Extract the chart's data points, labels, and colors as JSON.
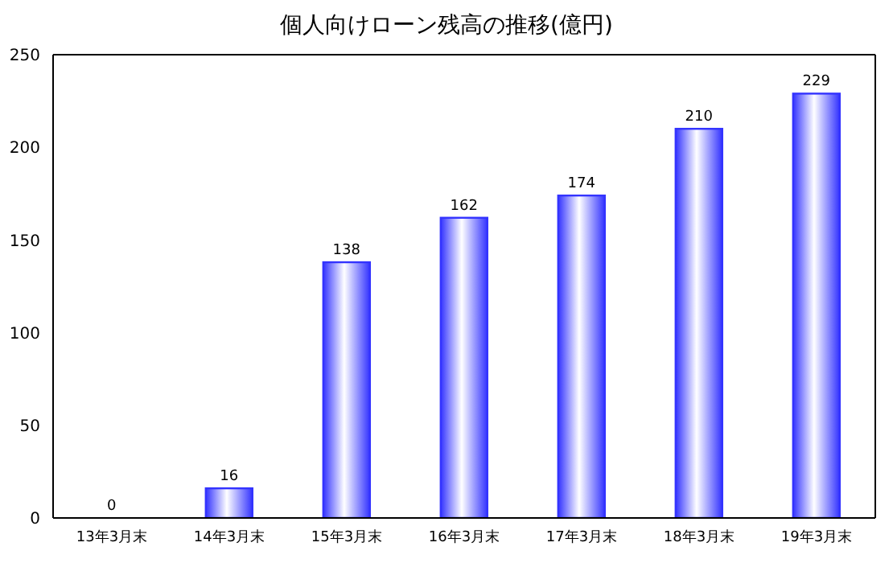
{
  "chart_data": {
    "type": "bar",
    "title": "個人向けローン残高の推移(億円)",
    "categories": [
      "13年3月末",
      "14年3月末",
      "15年3月末",
      "16年3月末",
      "17年3月末",
      "18年3月末",
      "19年3月末"
    ],
    "values": [
      0,
      16,
      138,
      162,
      174,
      210,
      229
    ],
    "color": "#3333ff",
    "ylim": [
      0,
      250
    ],
    "yticks": [
      0,
      50,
      100,
      150,
      200,
      250
    ],
    "data_labels": true
  }
}
